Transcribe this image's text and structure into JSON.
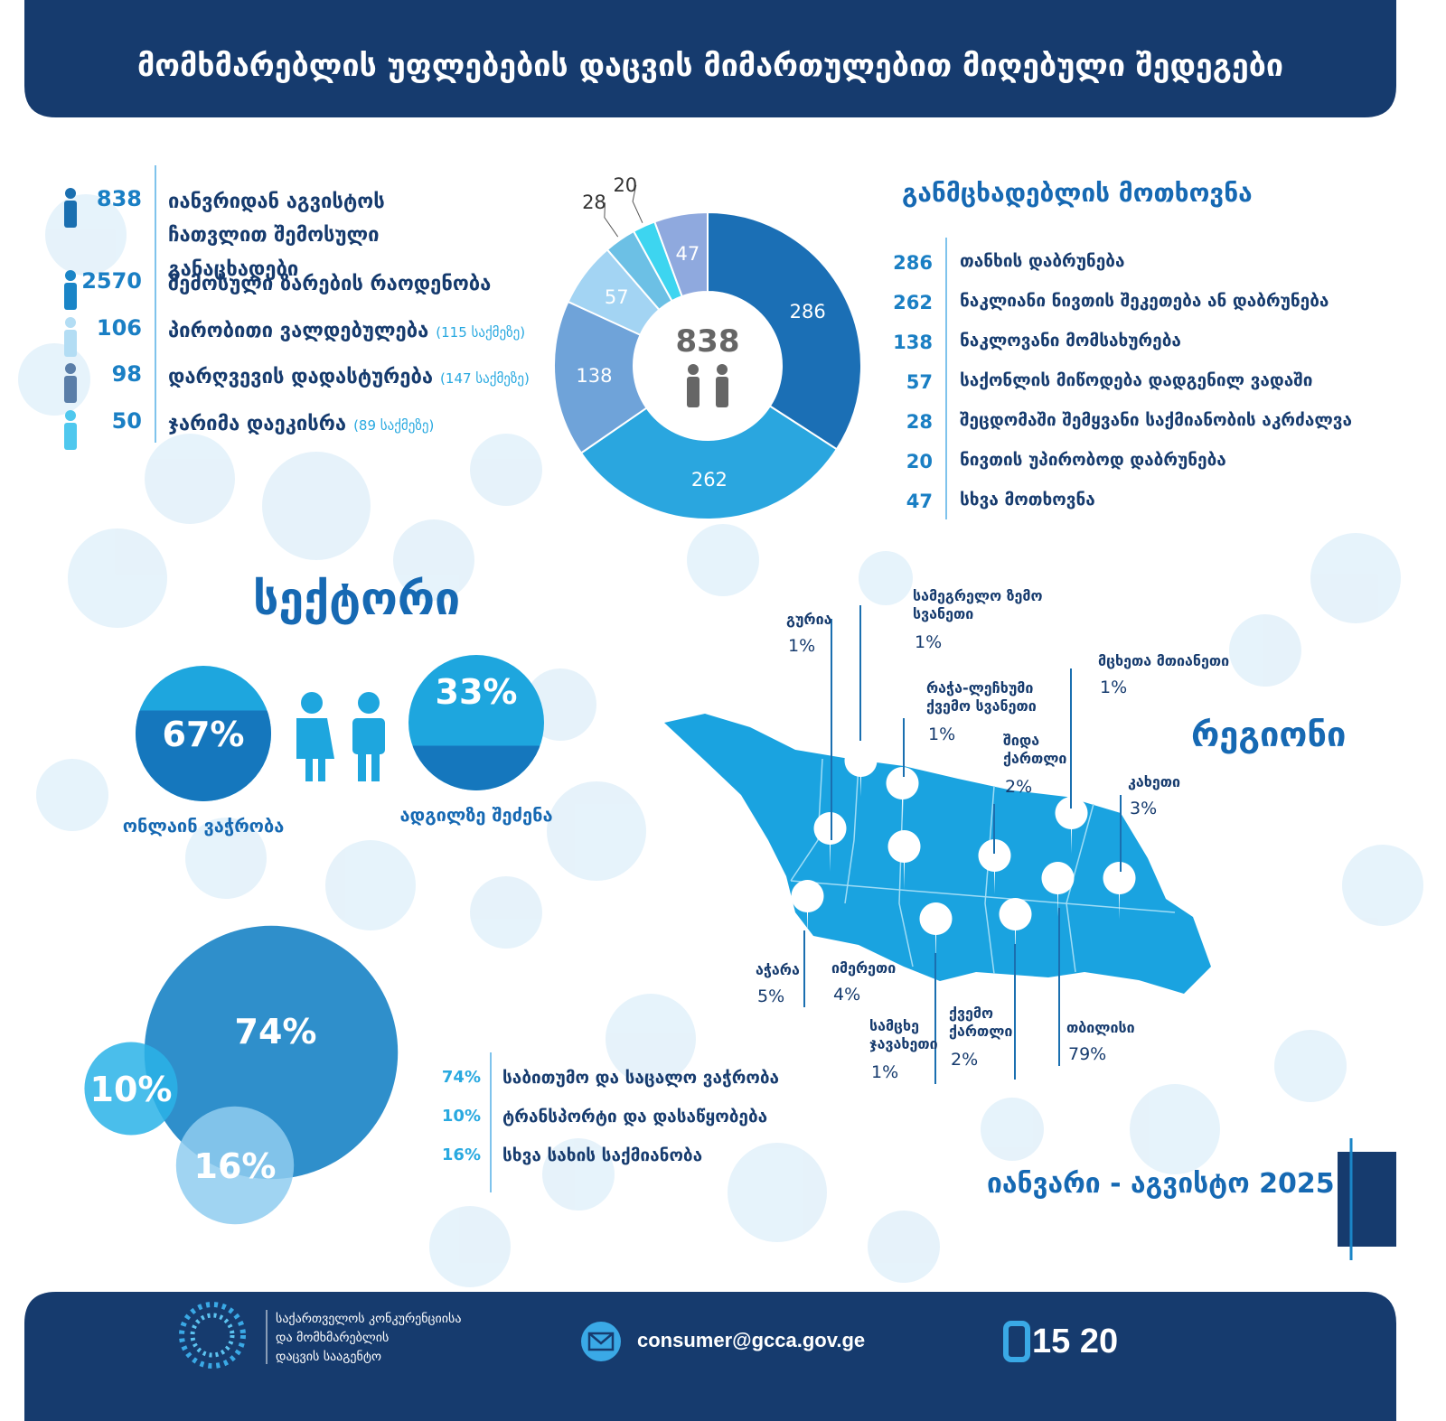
{
  "header": {
    "title": "მომხმარებლის უფლებების დაცვის მიმართულებით მიღებული შედეგები"
  },
  "stats": [
    {
      "value": 838,
      "label": "იანვრიდან აგვისტოს ჩათვლით შემოსული განაცხადები",
      "color": "#1a6fb0"
    },
    {
      "value": 2570,
      "label": "შემოსული ზარების რაოდენობა",
      "color": "#1a85c7"
    },
    {
      "value": 106,
      "label": "პირობითი ვალდებულება",
      "note": "(115 საქმეზე)",
      "color": "#b3ddf4"
    },
    {
      "value": 98,
      "label": "დარღვევის დადასტურება",
      "note": "(147 საქმეზე)",
      "color": "#5a7ea8"
    },
    {
      "value": 50,
      "label": "ჯარიმა დაეკისრა",
      "note": "(89 საქმეზე)",
      "color": "#4fc8ee"
    }
  ],
  "chart_data": [
    {
      "type": "donut",
      "title": "განმცხადებლის მოთხოვნა",
      "total": 838,
      "categories": [
        "თანხის დაბრუნება",
        "ნაკლიანი ნივთის შეკეთება ან დაბრუნება",
        "ნაკლოვანი მომსახურება",
        "საქონლის მიწოდება დადგენილ ვადაში",
        "შეცდომაში შემყვანი საქმიანობის აკრძალვა",
        "ნივთის უპირობოდ დაბრუნება",
        "სხვა მოთხოვნა"
      ],
      "values": [
        286,
        262,
        138,
        57,
        28,
        20,
        47
      ],
      "colors": [
        "#1b6fb5",
        "#2aa6df",
        "#6fa3d9",
        "#a3d4f3",
        "#6cc0e5",
        "#3dd5f0",
        "#8fa9de"
      ]
    },
    {
      "type": "split-circle",
      "title": "სექტორი",
      "categories": [
        "ონლაინ ვაჭრობა",
        "ადგილზე შეძენა"
      ],
      "values": [
        67,
        33
      ],
      "value_labels": [
        "67%",
        "33%"
      ],
      "colors": [
        "#1577bd",
        "#1ea6de"
      ]
    },
    {
      "type": "bubble",
      "categories": [
        "საბითუმო და საცალო ვაჭრობა",
        "ტრანსპორტი და დასაწყობება",
        "სხვა სახის საქმიანობა"
      ],
      "values": [
        74,
        10,
        16
      ],
      "value_labels": [
        "74%",
        "10%",
        "16%"
      ],
      "colors": [
        "#2f8fcb",
        "#2ab3e8",
        "#8fcdf0"
      ]
    }
  ],
  "map": {
    "title": "რეგიონი",
    "regions": [
      {
        "name": "გურია",
        "value": 1,
        "value_label": "1%"
      },
      {
        "name": "სამეგრელო ზემო სვანეთი",
        "value": 1,
        "value_label": "1%"
      },
      {
        "name": "მცხეთა მთიანეთი",
        "value": 1,
        "value_label": "1%"
      },
      {
        "name": "რაჭა-ლეჩხუმი ქვემო სვანეთი",
        "value": 1,
        "value_label": "1%"
      },
      {
        "name": "შიდა ქართლი",
        "value": 2,
        "value_label": "2%"
      },
      {
        "name": "კახეთი",
        "value": 3,
        "value_label": "3%"
      },
      {
        "name": "აჭარა",
        "value": 5,
        "value_label": "5%"
      },
      {
        "name": "იმერეთი",
        "value": 4,
        "value_label": "4%"
      },
      {
        "name": "სამცხე ჯავახეთი",
        "value": 1,
        "value_label": "1%"
      },
      {
        "name": "ქვემო ქართლი",
        "value": 2,
        "value_label": "2%"
      },
      {
        "name": "თბილისი",
        "value": 79,
        "value_label": "79%"
      }
    ]
  },
  "period": "იანვარი - აგვისტო 2025",
  "footer": {
    "agency": [
      "საქართველოს კონკურენციისა",
      "და მომხმარებლის",
      "დაცვის სააგენტო"
    ],
    "email": "consumer@gcca.gov.ge",
    "phone": "15 20"
  }
}
